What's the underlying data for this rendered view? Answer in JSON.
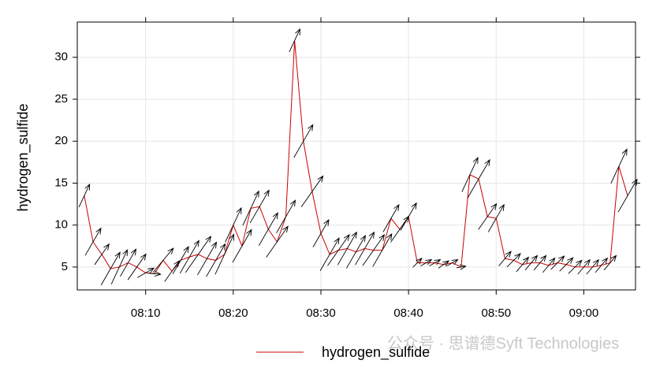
{
  "chart_data": {
    "type": "line",
    "y_label": "hydrogen_sulfide",
    "watermark": "公众号 · 思谱德Syft Technologies",
    "x": [
      483,
      484,
      485,
      486,
      487,
      488,
      489,
      490,
      491,
      492,
      493,
      494,
      495,
      496,
      497,
      498,
      499,
      500,
      501,
      502,
      503,
      504,
      505,
      506,
      507,
      508,
      509,
      510,
      511,
      512,
      513,
      514,
      515,
      516,
      517,
      518,
      519,
      520,
      521,
      522,
      523,
      524,
      525,
      526,
      527,
      528,
      529,
      530,
      531,
      532,
      533,
      534,
      535,
      536,
      537,
      538,
      539,
      540,
      541,
      542,
      543,
      544,
      545
    ],
    "series": [
      {
        "name": "hydrogen_sulfide",
        "color": "#cc0000",
        "values": [
          13.5,
          8,
          6.5,
          4.8,
          5,
          5.5,
          5,
          4.3,
          4.2,
          5.8,
          4.5,
          5.8,
          6.2,
          6.5,
          6,
          5.8,
          6.5,
          10,
          7.5,
          12,
          12.2,
          9.5,
          8,
          11,
          32,
          20,
          14,
          9,
          6.5,
          7,
          7.2,
          6.8,
          7.2,
          7,
          7,
          10.8,
          9.5,
          11,
          5.5,
          5.5,
          5.5,
          5.3,
          5.5,
          5,
          16,
          15.5,
          11,
          10.8,
          6,
          5.8,
          5.3,
          5.5,
          5.5,
          5.2,
          5.5,
          5.3,
          5,
          5,
          5,
          5.2,
          5.5,
          17,
          13.5
        ]
      }
    ],
    "wind_direction": [
      25,
      30,
      35,
      30,
      25,
      30,
      35,
      60,
      95,
      40,
      35,
      30,
      30,
      35,
      30,
      30,
      25,
      25,
      30,
      25,
      30,
      30,
      35,
      30,
      25,
      30,
      35,
      30,
      30,
      35,
      30,
      30,
      30,
      35,
      30,
      30,
      35,
      30,
      45,
      60,
      60,
      55,
      60,
      80,
      25,
      30,
      35,
      30,
      40,
      45,
      40,
      40,
      40,
      40,
      45,
      45,
      45,
      40,
      40,
      40,
      40,
      25,
      30
    ],
    "wind_speed": [
      4,
      5,
      4,
      6,
      6,
      5,
      5,
      3,
      2,
      5,
      4,
      5,
      6,
      7,
      6,
      6,
      7,
      6,
      6,
      6,
      6,
      6,
      6,
      6,
      4,
      6,
      6,
      5,
      6,
      6,
      6,
      6,
      6,
      6,
      6,
      5,
      5,
      5,
      2,
      2,
      2,
      2,
      2,
      1.5,
      6,
      7,
      5,
      5,
      3,
      3,
      3,
      3,
      3,
      3,
      3,
      3,
      3,
      3,
      3,
      3,
      3,
      6,
      6
    ],
    "xlim": [
      482.2,
      545.9
    ],
    "ylim": [
      2.27,
      34.2
    ],
    "xticks": [
      {
        "value": 490,
        "label": "08:10"
      },
      {
        "value": 500,
        "label": "08:20"
      },
      {
        "value": 510,
        "label": "08:30"
      },
      {
        "value": 520,
        "label": "08:40"
      },
      {
        "value": 530,
        "label": "08:50"
      },
      {
        "value": 540,
        "label": "09:00"
      }
    ],
    "yticks": [
      5,
      10,
      15,
      20,
      25,
      30
    ],
    "grid": true,
    "legend": "bottom"
  }
}
